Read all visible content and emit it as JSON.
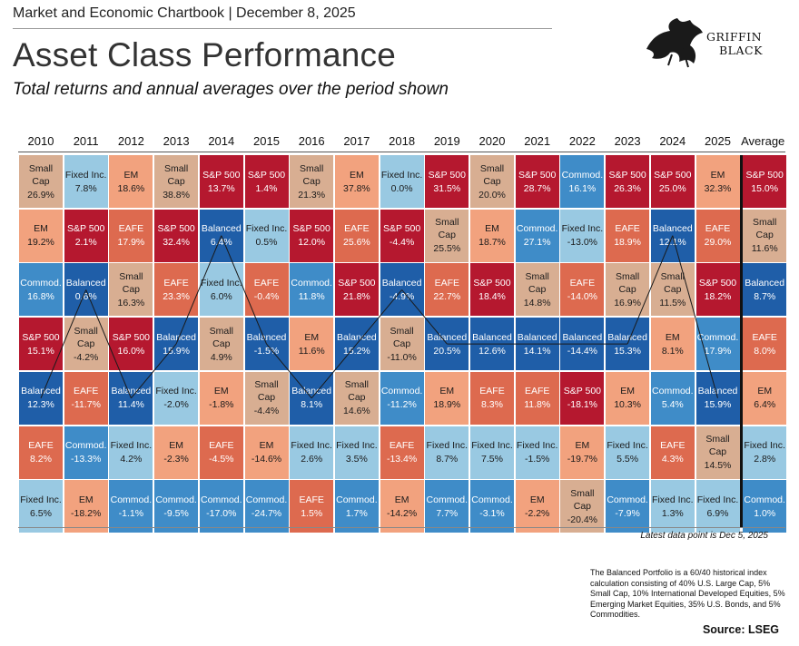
{
  "header": {
    "top_line": "Market and Economic Chartbook | December 8, 2025",
    "title": "Asset Class Performance",
    "subtitle": "Total returns and annual averages over the period shown",
    "logo_line1": "GRIFFIN",
    "logo_line2": "BLACK"
  },
  "colors": {
    "S&P 500": "#b5182f",
    "Small Cap": "#d8ae92",
    "EM": "#f2a27e",
    "EAFE": "#dd6a4f",
    "Fixed Inc.": "#99c9e2",
    "Commod.": "#3f8cc8",
    "Balanced": "#1f5ea8"
  },
  "chart_data": {
    "type": "table",
    "columns": [
      "2010",
      "2011",
      "2012",
      "2013",
      "2014",
      "2015",
      "2016",
      "2017",
      "2018",
      "2019",
      "2020",
      "2021",
      "2022",
      "2023",
      "2024",
      "2025",
      "Average"
    ],
    "ranks": [
      [
        [
          "Small Cap",
          "26.9%"
        ],
        [
          "Fixed Inc.",
          "7.8%"
        ],
        [
          "EM",
          "18.6%"
        ],
        [
          "Small Cap",
          "38.8%"
        ],
        [
          "S&P 500",
          "13.7%"
        ],
        [
          "S&P 500",
          "1.4%"
        ],
        [
          "Small Cap",
          "21.3%"
        ],
        [
          "EM",
          "37.8%"
        ],
        [
          "Fixed Inc.",
          "0.0%"
        ],
        [
          "S&P 500",
          "31.5%"
        ],
        [
          "Small Cap",
          "20.0%"
        ],
        [
          "S&P 500",
          "28.7%"
        ],
        [
          "Commod.",
          "16.1%"
        ],
        [
          "S&P 500",
          "26.3%"
        ],
        [
          "S&P 500",
          "25.0%"
        ],
        [
          "EM",
          "32.3%"
        ],
        [
          "S&P 500",
          "15.0%"
        ]
      ],
      [
        [
          "EM",
          "19.2%"
        ],
        [
          "S&P 500",
          "2.1%"
        ],
        [
          "EAFE",
          "17.9%"
        ],
        [
          "S&P 500",
          "32.4%"
        ],
        [
          "Balanced",
          "6.4%"
        ],
        [
          "Fixed Inc.",
          "0.5%"
        ],
        [
          "S&P 500",
          "12.0%"
        ],
        [
          "EAFE",
          "25.6%"
        ],
        [
          "S&P 500",
          "-4.4%"
        ],
        [
          "Small Cap",
          "25.5%"
        ],
        [
          "EM",
          "18.7%"
        ],
        [
          "Commod.",
          "27.1%"
        ],
        [
          "Fixed Inc.",
          "-13.0%"
        ],
        [
          "EAFE",
          "18.9%"
        ],
        [
          "Balanced",
          "12.1%"
        ],
        [
          "EAFE",
          "29.0%"
        ],
        [
          "Small Cap",
          "11.6%"
        ]
      ],
      [
        [
          "Commod.",
          "16.8%"
        ],
        [
          "Balanced",
          "0.6%"
        ],
        [
          "Small Cap",
          "16.3%"
        ],
        [
          "EAFE",
          "23.3%"
        ],
        [
          "Fixed Inc.",
          "6.0%"
        ],
        [
          "EAFE",
          "-0.4%"
        ],
        [
          "Commod.",
          "11.8%"
        ],
        [
          "S&P 500",
          "21.8%"
        ],
        [
          "Balanced",
          "-4.9%"
        ],
        [
          "EAFE",
          "22.7%"
        ],
        [
          "S&P 500",
          "18.4%"
        ],
        [
          "Small Cap",
          "14.8%"
        ],
        [
          "EAFE",
          "-14.0%"
        ],
        [
          "Small Cap",
          "16.9%"
        ],
        [
          "Small Cap",
          "11.5%"
        ],
        [
          "S&P 500",
          "18.2%"
        ],
        [
          "Balanced",
          "8.7%"
        ]
      ],
      [
        [
          "S&P 500",
          "15.1%"
        ],
        [
          "Small Cap",
          "-4.2%"
        ],
        [
          "S&P 500",
          "16.0%"
        ],
        [
          "Balanced",
          "15.9%"
        ],
        [
          "Small Cap",
          "4.9%"
        ],
        [
          "Balanced",
          "-1.5%"
        ],
        [
          "EM",
          "11.6%"
        ],
        [
          "Balanced",
          "15.2%"
        ],
        [
          "Small Cap",
          "-11.0%"
        ],
        [
          "Balanced",
          "20.5%"
        ],
        [
          "Balanced",
          "12.6%"
        ],
        [
          "Balanced",
          "14.1%"
        ],
        [
          "Balanced",
          "-14.4%"
        ],
        [
          "Balanced",
          "15.3%"
        ],
        [
          "EM",
          "8.1%"
        ],
        [
          "Commod.",
          "17.9%"
        ],
        [
          "EAFE",
          "8.0%"
        ]
      ],
      [
        [
          "Balanced",
          "12.3%"
        ],
        [
          "EAFE",
          "-11.7%"
        ],
        [
          "Balanced",
          "11.4%"
        ],
        [
          "Fixed Inc.",
          "-2.0%"
        ],
        [
          "EM",
          "-1.8%"
        ],
        [
          "Small Cap",
          "-4.4%"
        ],
        [
          "Balanced",
          "8.1%"
        ],
        [
          "Small Cap",
          "14.6%"
        ],
        [
          "Commod.",
          "-11.2%"
        ],
        [
          "EM",
          "18.9%"
        ],
        [
          "EAFE",
          "8.3%"
        ],
        [
          "EAFE",
          "11.8%"
        ],
        [
          "S&P 500",
          "-18.1%"
        ],
        [
          "EM",
          "10.3%"
        ],
        [
          "Commod.",
          "5.4%"
        ],
        [
          "Balanced",
          "15.9%"
        ],
        [
          "EM",
          "6.4%"
        ]
      ],
      [
        [
          "EAFE",
          "8.2%"
        ],
        [
          "Commod.",
          "-13.3%"
        ],
        [
          "Fixed Inc.",
          "4.2%"
        ],
        [
          "EM",
          "-2.3%"
        ],
        [
          "EAFE",
          "-4.5%"
        ],
        [
          "EM",
          "-14.6%"
        ],
        [
          "Fixed Inc.",
          "2.6%"
        ],
        [
          "Fixed Inc.",
          "3.5%"
        ],
        [
          "EAFE",
          "-13.4%"
        ],
        [
          "Fixed Inc.",
          "8.7%"
        ],
        [
          "Fixed Inc.",
          "7.5%"
        ],
        [
          "Fixed Inc.",
          "-1.5%"
        ],
        [
          "EM",
          "-19.7%"
        ],
        [
          "Fixed Inc.",
          "5.5%"
        ],
        [
          "EAFE",
          "4.3%"
        ],
        [
          "Small Cap",
          "14.5%"
        ],
        [
          "Fixed Inc.",
          "2.8%"
        ]
      ],
      [
        [
          "Fixed Inc.",
          "6.5%"
        ],
        [
          "EM",
          "-18.2%"
        ],
        [
          "Commod.",
          "-1.1%"
        ],
        [
          "Commod.",
          "-9.5%"
        ],
        [
          "Commod.",
          "-17.0%"
        ],
        [
          "Commod.",
          "-24.7%"
        ],
        [
          "EAFE",
          "1.5%"
        ],
        [
          "Commod.",
          "1.7%"
        ],
        [
          "EM",
          "-14.2%"
        ],
        [
          "Commod.",
          "7.7%"
        ],
        [
          "Commod.",
          "-3.1%"
        ],
        [
          "EM",
          "-2.2%"
        ],
        [
          "Small Cap",
          "-20.4%"
        ],
        [
          "Commod.",
          "-7.9%"
        ],
        [
          "Fixed Inc.",
          "1.3%"
        ],
        [
          "Fixed Inc.",
          "6.9%"
        ],
        [
          "Commod.",
          "1.0%"
        ]
      ]
    ],
    "highlight_series": "Balanced"
  },
  "footer": {
    "latest": "Latest data point is Dec 5, 2025",
    "note": "The Balanced Portfolio is a 60/40 historical index calculation consisting of 40% U.S. Large Cap, 5% Small Cap, 10% International Developed Equities, 5% Emerging Market Equities, 35% U.S. Bonds, and 5% Commodities.",
    "source": "Source: LSEG"
  }
}
